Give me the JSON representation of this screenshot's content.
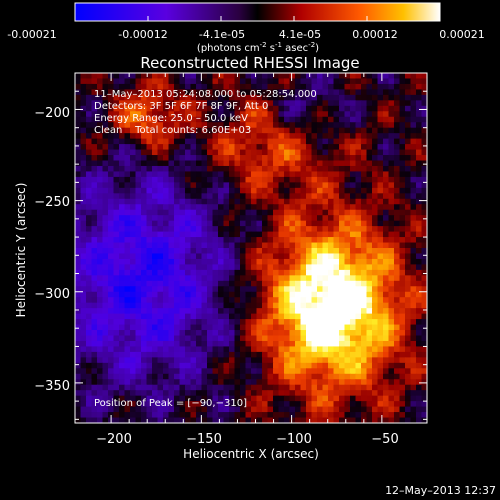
{
  "colorbar": {
    "tick_labels": [
      "-0.00021",
      "-0.00012",
      "-4.1e-05",
      "4.1e-05",
      "0.00012",
      "0.00021"
    ],
    "units_prefix": "(photons cm",
    "units_exp1": "-2",
    "units_mid": " s",
    "units_exp2": "-1",
    "units_mid2": " asec",
    "units_exp3": "-2",
    "units_suffix": ")"
  },
  "chart_data": {
    "type": "heatmap",
    "title": "Reconstructed RHESSI Image",
    "xlabel": "Heliocentric X (arcsec)",
    "ylabel": "Heliocentric Y (arcsec)",
    "xlim": [
      -220,
      -25
    ],
    "ylim": [
      -372,
      -180
    ],
    "x_ticks": [
      -200,
      -150,
      -100,
      -50
    ],
    "y_ticks": [
      -200,
      -250,
      -300,
      -350
    ],
    "x_tick_labels": [
      "−200",
      "−150",
      "−100",
      "−50"
    ],
    "y_tick_labels": [
      "−200",
      "−250",
      "−300",
      "−350"
    ],
    "value_range": [
      -0.00021,
      0.00021
    ],
    "peak": [
      -90,
      -310
    ],
    "annotations": [
      "11–May–2013 05:24:08.000 to 05:28:54.000",
      "Detectors: 3F 5F 6F 7F 8F 9F, Att 0",
      "Energy Range: 25.0 – 50.0 keV",
      "Clean    Total counts: 6.60E+03",
      "Position of Peak = [−90,−310]"
    ]
  },
  "footer_timestamp": "12–May–2013 12:37"
}
